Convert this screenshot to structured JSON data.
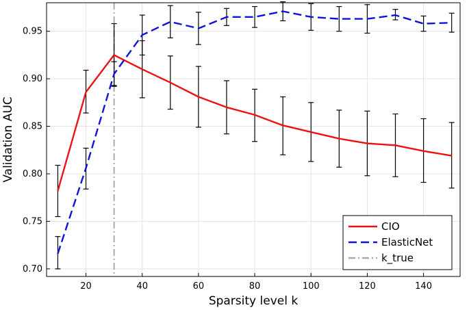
{
  "chart_data": {
    "type": "line",
    "xlabel": "Sparsity level k",
    "ylabel": "Validation AUC",
    "xlim": [
      6,
      153
    ],
    "ylim": [
      0.692,
      0.98
    ],
    "xticks": [
      20,
      40,
      60,
      80,
      100,
      120,
      140
    ],
    "yticks": [
      0.7,
      0.75,
      0.8,
      0.85,
      0.9,
      0.95
    ],
    "grid": true,
    "legend_position": "bottom-right",
    "x": [
      10,
      20,
      30,
      40,
      50,
      60,
      70,
      80,
      90,
      100,
      110,
      120,
      130,
      140,
      150
    ],
    "series": [
      {
        "name": "CIO",
        "color": "#ee1111",
        "style": "solid",
        "values": [
          0.782,
          0.886,
          0.925,
          0.91,
          0.896,
          0.881,
          0.87,
          0.862,
          0.851,
          0.844,
          0.837,
          0.832,
          0.83,
          0.824,
          0.819
        ],
        "error_low": [
          0.755,
          0.864,
          0.893,
          0.88,
          0.868,
          0.849,
          0.842,
          0.834,
          0.82,
          0.813,
          0.807,
          0.798,
          0.797,
          0.791,
          0.785
        ],
        "error_high": [
          0.809,
          0.909,
          0.958,
          0.94,
          0.924,
          0.913,
          0.898,
          0.889,
          0.881,
          0.875,
          0.867,
          0.866,
          0.863,
          0.858,
          0.854
        ]
      },
      {
        "name": "ElasticNet",
        "color": "#1111dd",
        "style": "dashed",
        "values": [
          0.716,
          0.806,
          0.905,
          0.946,
          0.96,
          0.953,
          0.965,
          0.965,
          0.971,
          0.965,
          0.963,
          0.963,
          0.967,
          0.958,
          0.959
        ],
        "error_low": [
          0.7,
          0.784,
          0.892,
          0.925,
          0.943,
          0.936,
          0.956,
          0.954,
          0.961,
          0.951,
          0.95,
          0.948,
          0.962,
          0.95,
          0.949
        ],
        "error_high": [
          0.734,
          0.827,
          0.918,
          0.967,
          0.977,
          0.97,
          0.974,
          0.976,
          0.981,
          0.979,
          0.976,
          0.978,
          0.973,
          0.966,
          0.969
        ]
      }
    ],
    "reference_lines": [
      {
        "name": "k_true",
        "x": 30,
        "color": "#aaaaaa",
        "style": "dash-dot"
      }
    ]
  }
}
